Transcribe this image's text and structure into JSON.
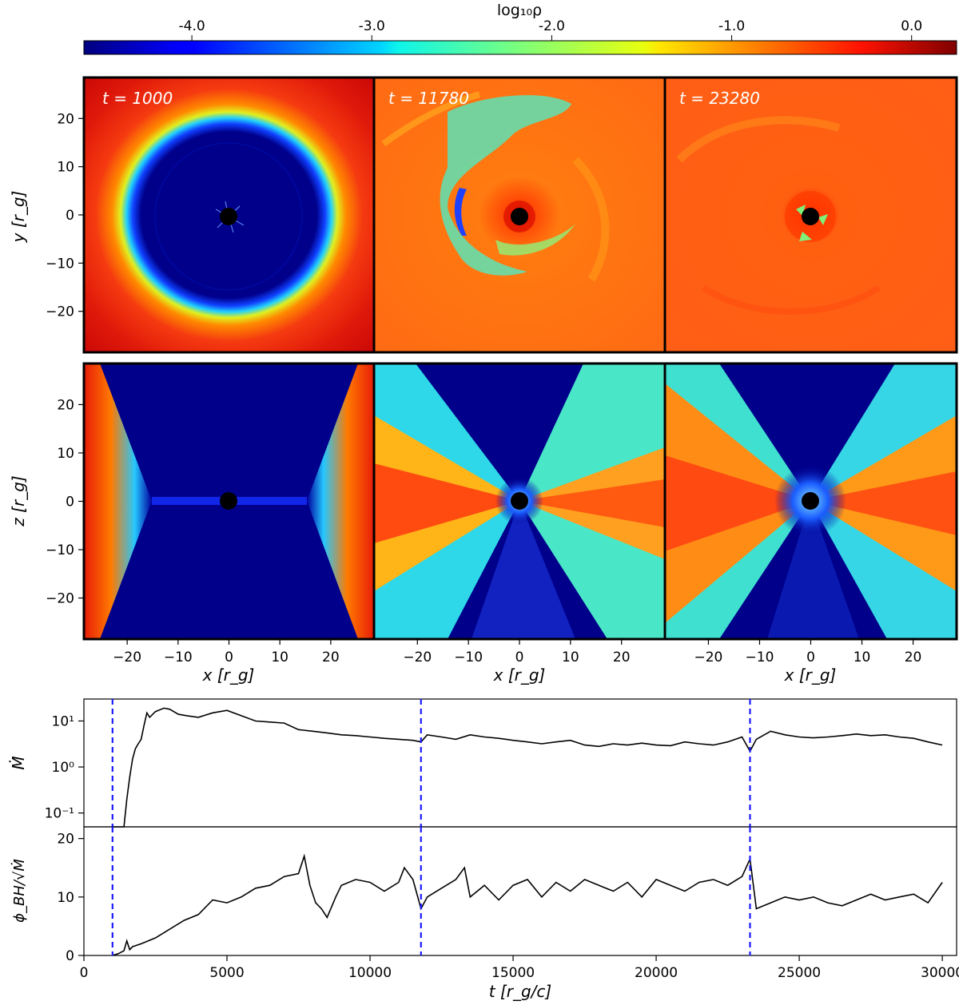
{
  "colorbar": {
    "label": "log₁₀ρ",
    "ticks": [
      "-4.0",
      "-3.0",
      "-2.0",
      "-1.0",
      "0.0"
    ],
    "tick_values": [
      -4.0,
      -3.0,
      -2.0,
      -1.0,
      0.0
    ],
    "range": [
      -4.6,
      0.25
    ],
    "colormap": "jet"
  },
  "panels": {
    "times": [
      "t = 1000",
      "t = 11780",
      "t = 23280"
    ],
    "row1_ylabel": "y [r_g]",
    "row2_ylabel": "z [r_g]",
    "xlabel": "x [r_g]",
    "axis_ticks": [
      "−20",
      "−10",
      "0",
      "10",
      "20"
    ],
    "axis_tick_values": [
      -20,
      -10,
      0,
      10,
      20
    ],
    "axis_range": [
      -28.5,
      28.5
    ]
  },
  "chart_data": [
    {
      "type": "line",
      "title": "",
      "xlabel": "t [r_g/c]",
      "ylabel": "Ṁ",
      "yscale": "log",
      "ylim": [
        0.05,
        30
      ],
      "xlim": [
        0,
        30500
      ],
      "ytick_labels": [
        "10⁻¹",
        "10⁰",
        "10¹"
      ],
      "ytick_values": [
        0.1,
        1,
        10
      ],
      "x": [
        1000,
        1200,
        1400,
        1500,
        1600,
        1700,
        1800,
        1900,
        2000,
        2100,
        2200,
        2300,
        2500,
        2800,
        3000,
        3300,
        3600,
        4000,
        4500,
        5000,
        5500,
        6000,
        6500,
        7000,
        7500,
        8000,
        8500,
        9000,
        9500,
        10000,
        10500,
        11000,
        11500,
        11780,
        12000,
        12500,
        13000,
        13500,
        14000,
        14500,
        15000,
        15500,
        16000,
        16500,
        17000,
        17500,
        18000,
        18500,
        19000,
        19500,
        20000,
        20500,
        21000,
        21500,
        22000,
        22500,
        23000,
        23280,
        23500,
        24000,
        24500,
        25000,
        25500,
        26000,
        26500,
        27000,
        27500,
        28000,
        28500,
        29000,
        29500,
        30000
      ],
      "values": [
        0.05,
        0.05,
        0.05,
        0.2,
        0.6,
        1.5,
        2.5,
        3.2,
        4.0,
        8.0,
        15.0,
        12.0,
        16.0,
        19.0,
        18.0,
        14.0,
        13.0,
        12.0,
        15.0,
        17.0,
        13.0,
        10.0,
        9.5,
        9.0,
        6.5,
        6.0,
        5.5,
        5.0,
        4.8,
        4.5,
        4.2,
        4.0,
        3.8,
        3.5,
        5.0,
        4.5,
        4.0,
        5.0,
        4.5,
        4.2,
        3.8,
        3.5,
        3.2,
        3.5,
        3.8,
        3.0,
        2.8,
        3.2,
        3.0,
        3.3,
        3.0,
        2.9,
        3.5,
        3.2,
        3.0,
        3.5,
        4.5,
        2.2,
        4.0,
        6.0,
        5.0,
        4.5,
        4.3,
        4.5,
        4.8,
        5.2,
        4.8,
        5.0,
        4.5,
        4.2,
        3.5,
        3.0
      ],
      "markers": [
        1000,
        11780,
        23280
      ]
    },
    {
      "type": "line",
      "title": "",
      "xlabel": "t [r_g/c]",
      "ylabel": "ϕ_BH/√Ṁ",
      "ylim": [
        0,
        22
      ],
      "xlim": [
        0,
        30500
      ],
      "xtick_labels": [
        "0",
        "5000",
        "10000",
        "15000",
        "20000",
        "25000",
        "30000"
      ],
      "xtick_values": [
        0,
        5000,
        10000,
        15000,
        20000,
        25000,
        30000
      ],
      "ytick_labels": [
        "0",
        "10",
        "20"
      ],
      "ytick_values": [
        0,
        10,
        20
      ],
      "x": [
        1000,
        1200,
        1400,
        1500,
        1600,
        1700,
        2000,
        2500,
        3000,
        3500,
        4000,
        4500,
        5000,
        5500,
        6000,
        6500,
        7000,
        7500,
        7700,
        7900,
        8100,
        8300,
        8500,
        8800,
        9000,
        9500,
        10000,
        10500,
        11000,
        11200,
        11500,
        11780,
        12000,
        12500,
        13000,
        13300,
        13500,
        14000,
        14500,
        15000,
        15500,
        16000,
        16500,
        17000,
        17500,
        18000,
        18500,
        19000,
        19500,
        20000,
        20500,
        21000,
        21500,
        22000,
        22500,
        23000,
        23280,
        23500,
        24000,
        24500,
        25000,
        25500,
        26000,
        26500,
        27000,
        27500,
        28000,
        28500,
        29000,
        29500,
        30000
      ],
      "values": [
        0.0,
        0.3,
        0.8,
        2.5,
        1.0,
        1.5,
        2.0,
        3.0,
        4.5,
        6.0,
        7.0,
        9.5,
        9.0,
        10.0,
        11.5,
        12.0,
        13.5,
        14.0,
        17.0,
        12.0,
        9.0,
        8.0,
        6.5,
        10.0,
        12.0,
        13.0,
        12.5,
        11.0,
        12.5,
        15.0,
        13.0,
        8.0,
        10.0,
        11.5,
        13.0,
        15.0,
        10.0,
        12.0,
        9.5,
        12.0,
        13.0,
        10.0,
        12.5,
        11.0,
        13.0,
        12.0,
        11.0,
        12.5,
        10.0,
        13.0,
        12.0,
        11.0,
        12.5,
        13.0,
        12.0,
        13.5,
        16.5,
        8.0,
        9.0,
        10.0,
        9.5,
        10.0,
        9.0,
        8.5,
        9.5,
        10.5,
        9.5,
        10.0,
        10.5,
        9.0,
        12.5
      ],
      "markers": [
        1000,
        11780,
        23280
      ]
    }
  ]
}
